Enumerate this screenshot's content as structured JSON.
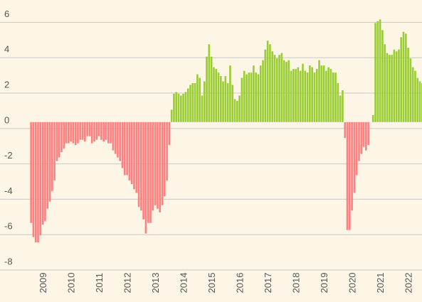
{
  "chart_data": {
    "type": "bar",
    "categories": [
      null,
      null,
      null,
      null,
      null,
      "2009",
      null,
      null,
      null,
      null,
      null,
      null,
      null,
      null,
      null,
      null,
      null,
      "2010",
      null,
      null,
      null,
      null,
      null,
      null,
      null,
      null,
      null,
      null,
      null,
      "2011",
      null,
      null,
      null,
      null,
      null,
      null,
      null,
      null,
      null,
      null,
      null,
      "2012",
      null,
      null,
      null,
      null,
      null,
      null,
      null,
      null,
      null,
      null,
      null,
      "2013",
      null,
      null,
      null,
      null,
      null,
      null,
      null,
      null,
      null,
      null,
      null,
      "2014",
      null,
      null,
      null,
      null,
      null,
      null,
      null,
      null,
      null,
      null,
      null,
      "2015",
      null,
      null,
      null,
      null,
      null,
      null,
      null,
      null,
      null,
      null,
      null,
      "2016",
      null,
      null,
      null,
      null,
      null,
      null,
      null,
      null,
      null,
      null,
      null,
      "2017",
      null,
      null,
      null,
      null,
      null,
      null,
      null,
      null,
      null,
      null,
      null,
      "2018",
      null,
      null,
      null,
      null,
      null,
      null,
      null,
      null,
      null,
      null,
      null,
      "2019",
      null,
      null,
      null,
      null,
      null,
      null,
      null,
      null,
      null,
      null,
      null,
      "2020",
      null,
      null,
      null,
      null,
      null,
      null,
      null,
      null,
      null,
      null,
      null,
      "2021",
      null,
      null,
      null,
      null,
      null,
      null,
      null,
      null,
      null,
      null,
      null,
      "2022",
      null,
      null,
      null,
      null,
      null,
      null
    ],
    "values": [
      -5.7,
      -6.5,
      -6.8,
      -6.8,
      -6.4,
      -5.8,
      -5.6,
      -4.9,
      -4.5,
      -3.9,
      -3.3,
      -2.2,
      -2.0,
      -1.7,
      -1.5,
      -1.2,
      -1.2,
      -1.1,
      -1.2,
      -1.3,
      -1.2,
      -1.0,
      -1.0,
      -1.1,
      -0.8,
      -0.8,
      -1.2,
      -1.1,
      -1.0,
      -0.8,
      -1.0,
      -1.1,
      -1.0,
      -1.2,
      -1.2,
      -1.6,
      -1.8,
      -2.0,
      -2.2,
      -2.6,
      -3.0,
      -3.0,
      -3.3,
      -3.5,
      -3.8,
      -4.0,
      -4.8,
      -5.0,
      -5.5,
      -6.3,
      -5.7,
      -5.7,
      -5.0,
      -4.7,
      -4.9,
      -5.1,
      -4.7,
      -4.2,
      -3.3,
      -1.3,
      0.7,
      1.6,
      1.7,
      1.6,
      1.5,
      1.6,
      1.7,
      1.9,
      2.1,
      2.2,
      2.2,
      2.7,
      2.5,
      1.5,
      2.3,
      3.7,
      4.4,
      3.7,
      3.1,
      3.0,
      2.8,
      2.6,
      2.3,
      2.6,
      2.2,
      3.2,
      2.1,
      1.3,
      1.2,
      1.5,
      2.5,
      2.9,
      2.7,
      2.8,
      2.8,
      3.2,
      2.8,
      2.7,
      3.2,
      3.5,
      4.1,
      4.6,
      4.4,
      4.0,
      3.8,
      3.6,
      3.8,
      3.9,
      3.5,
      3.4,
      3.5,
      2.9,
      3.0,
      3.0,
      3.1,
      2.9,
      3.3,
      2.9,
      2.8,
      3.2,
      3.1,
      2.8,
      3.0,
      3.5,
      3.2,
      3.2,
      2.9,
      3.1,
      3.0,
      2.8,
      2.8,
      2.2,
      1.5,
      1.8,
      -0.9,
      -6.1,
      -6.1,
      -5.0,
      -4.0,
      -3.0,
      -2.2,
      -1.8,
      -1.4,
      -1.6,
      -1.3,
      0,
      0.4,
      5.6,
      5.7,
      5.8,
      5.2,
      4.4,
      3.9,
      3.8,
      3.8,
      4.1,
      4.0,
      4.1,
      4.8,
      5.1,
      5.0,
      4.2,
      3.6,
      3.1,
      2.9,
      2.5,
      2.3,
      2.2
    ],
    "positive_color": "#9acd32",
    "negative_color": "#ff8080",
    "ylim": [
      -8.2,
      6.9
    ],
    "yticks": [
      -8,
      -6,
      -4,
      -2,
      0,
      2,
      4,
      6
    ],
    "grid": true
  }
}
